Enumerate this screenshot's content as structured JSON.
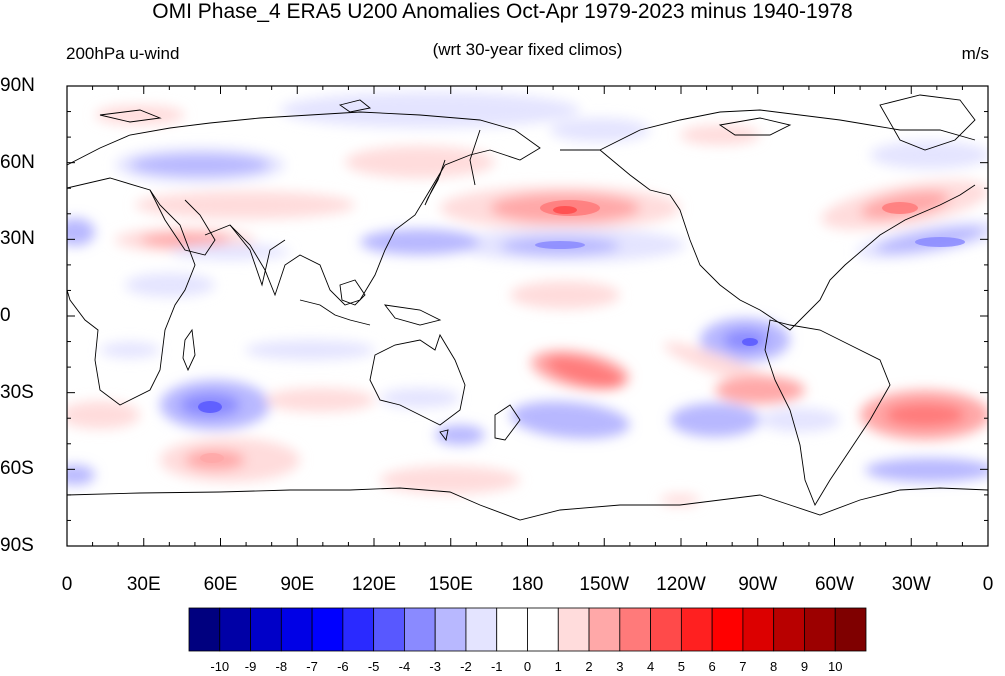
{
  "header": {
    "title": "OMI Phase_4 ERA5 U200 Anomalies Oct-Apr 1979-2023 minus 1940-1978",
    "left_subtitle": "200hPa u-wind",
    "center_subtitle": "(wrt 30-year fixed climos)",
    "units": "m/s"
  },
  "axes": {
    "lat_labels": [
      "90N",
      "60N",
      "30N",
      "0",
      "30S",
      "60S",
      "90S"
    ],
    "lon_labels": [
      "0",
      "30E",
      "60E",
      "90E",
      "120E",
      "150E",
      "180",
      "150W",
      "120W",
      "90W",
      "60W",
      "30W",
      "0"
    ]
  },
  "colorbar": {
    "labels": [
      "-10",
      "-9",
      "-8",
      "-7",
      "-6",
      "-5",
      "-4",
      "-3",
      "-2",
      "-1",
      "0",
      "1",
      "2",
      "3",
      "4",
      "5",
      "6",
      "7",
      "8",
      "9",
      "10"
    ],
    "colors": [
      "#00007f",
      "#0000a6",
      "#0000c8",
      "#0000e6",
      "#0000ff",
      "#2a2aff",
      "#5858ff",
      "#8a8aff",
      "#b8b8ff",
      "#e4e4ff",
      "#ffffff",
      "#ffffff",
      "#ffdcdc",
      "#ffa8a8",
      "#ff7a7a",
      "#ff4a4a",
      "#ff2020",
      "#ff0000",
      "#dc0000",
      "#b80000",
      "#9c0000",
      "#7f0000"
    ]
  },
  "anomaly_colors": {
    "neg_light": "#e4e4ff",
    "neg_mid": "#b8b8ff",
    "neg_strong": "#8a8aff",
    "neg_core": "#5858ff",
    "pos_light": "#ffdcdc",
    "pos_mid": "#ffa8a8",
    "pos_strong": "#ff7a7a",
    "pos_core": "#ff4a4a"
  }
}
